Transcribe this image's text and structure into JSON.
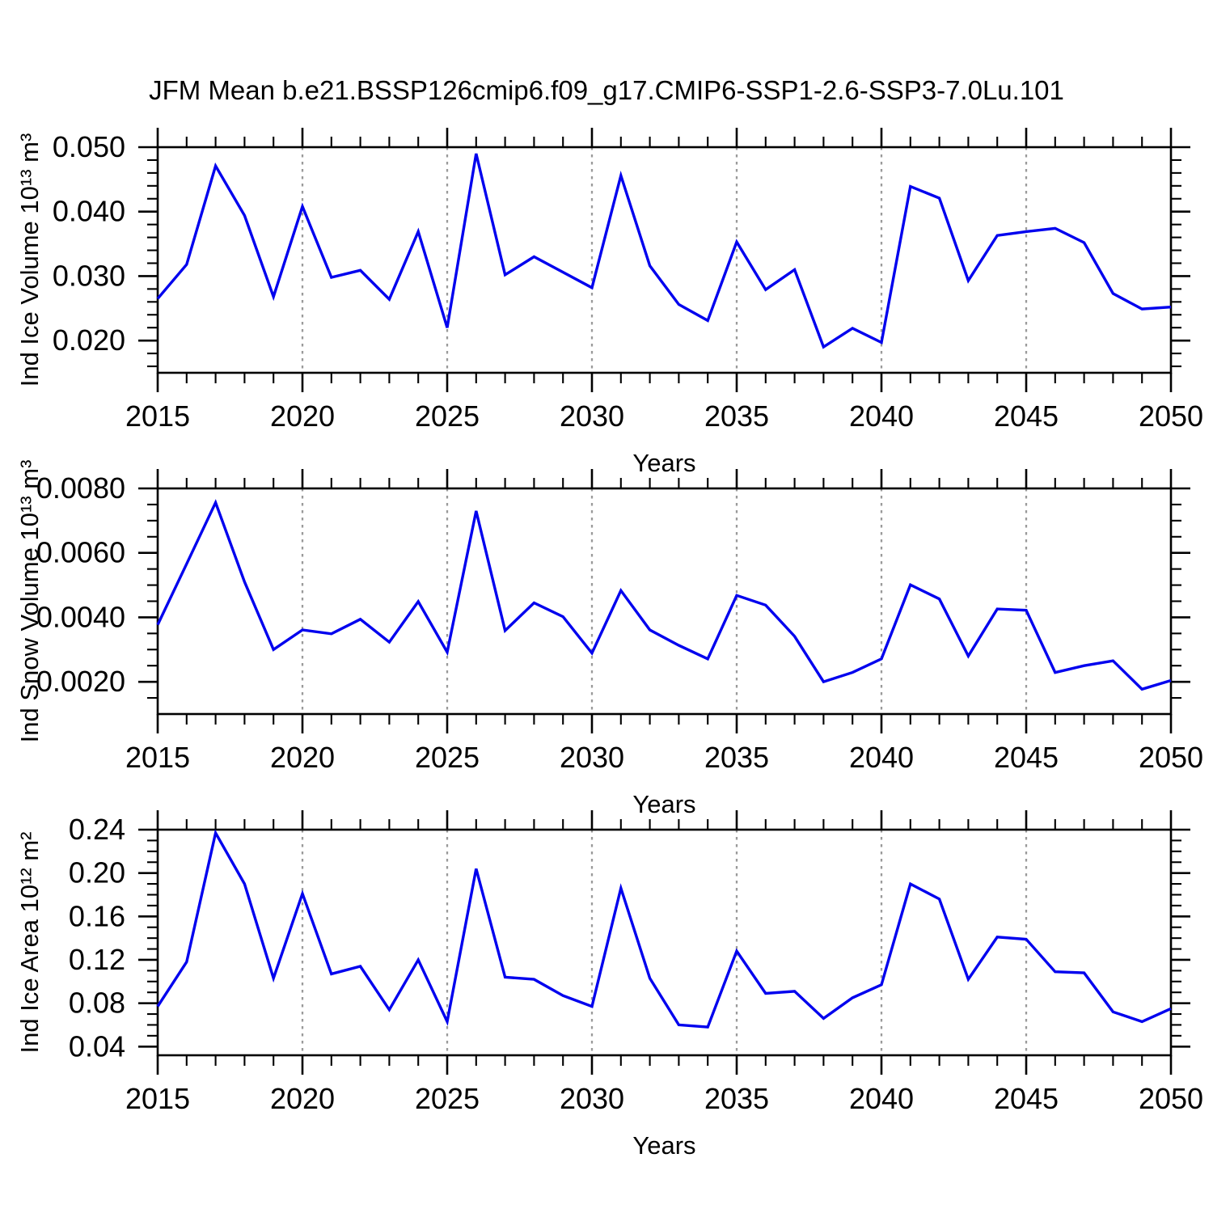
{
  "title": "JFM Mean b.e21.BSSP126cmip6.f09_g17.CMIP6-SSP1-2.6-SSP3-7.0Lu.101",
  "colors": {
    "line": "#0000ee",
    "axis": "#000000",
    "gridline": "#9a9a9a",
    "background": "#ffffff",
    "text": "#000000"
  },
  "chart_data": [
    {
      "type": "line",
      "ylabel": "Ind Ice Volume 10¹³ m³",
      "xlabel": "Years",
      "x": [
        2015,
        2016,
        2017,
        2018,
        2019,
        2020,
        2021,
        2022,
        2023,
        2024,
        2025,
        2026,
        2027,
        2028,
        2029,
        2030,
        2031,
        2032,
        2033,
        2034,
        2035,
        2036,
        2037,
        2038,
        2039,
        2040,
        2041,
        2042,
        2043,
        2044,
        2045,
        2046,
        2047,
        2048,
        2049,
        2050
      ],
      "values": [
        0.0265,
        0.0318,
        0.0471,
        0.0394,
        0.0268,
        0.0408,
        0.0298,
        0.0309,
        0.0264,
        0.0369,
        0.022,
        0.049,
        0.0302,
        0.033,
        0.0306,
        0.0282,
        0.0456,
        0.0316,
        0.0256,
        0.0231,
        0.0353,
        0.0279,
        0.031,
        0.019,
        0.0219,
        0.0197,
        0.0439,
        0.0421,
        0.0293,
        0.0363,
        0.0369,
        0.0374,
        0.0352,
        0.0273,
        0.0249,
        0.0252
      ],
      "xlim": [
        2015,
        2050
      ],
      "ylim": [
        0.015,
        0.05
      ],
      "x_major_ticks": [
        2015,
        2020,
        2025,
        2030,
        2035,
        2040,
        2045,
        2050
      ],
      "x_tick_labels": [
        "2015",
        "2020",
        "2025",
        "2030",
        "2035",
        "2040",
        "2045",
        "2050"
      ],
      "x_minor_step": 1,
      "y_major_ticks": [
        0.02,
        0.03,
        0.04,
        0.05
      ],
      "y_tick_labels": [
        "0.020",
        "0.030",
        "0.040",
        "0.050"
      ],
      "y_minor_step": 0.002,
      "x_gridlines": [
        2020,
        2025,
        2030,
        2035,
        2040,
        2045
      ],
      "grid": "vertical-dashed",
      "legend": "none"
    },
    {
      "type": "line",
      "ylabel": "Ind Snow Volume 10¹³ m³",
      "xlabel": "Years",
      "x": [
        2015,
        2016,
        2017,
        2018,
        2019,
        2020,
        2021,
        2022,
        2023,
        2024,
        2025,
        2026,
        2027,
        2028,
        2029,
        2030,
        2031,
        2032,
        2033,
        2034,
        2035,
        2036,
        2037,
        2038,
        2039,
        2040,
        2041,
        2042,
        2043,
        2044,
        2045,
        2046,
        2047,
        2048,
        2049,
        2050
      ],
      "values": [
        0.00377,
        0.00566,
        0.00756,
        0.0051,
        0.003,
        0.00361,
        0.00349,
        0.00394,
        0.00323,
        0.00449,
        0.00292,
        0.0073,
        0.00359,
        0.00445,
        0.00402,
        0.00289,
        0.00483,
        0.00361,
        0.00313,
        0.00271,
        0.00468,
        0.00438,
        0.00341,
        0.002,
        0.00229,
        0.00271,
        0.00501,
        0.00457,
        0.0028,
        0.00426,
        0.00422,
        0.00229,
        0.0025,
        0.00265,
        0.00177,
        0.00204
      ],
      "xlim": [
        2015,
        2050
      ],
      "ylim": [
        0.001,
        0.008
      ],
      "x_major_ticks": [
        2015,
        2020,
        2025,
        2030,
        2035,
        2040,
        2045,
        2050
      ],
      "x_tick_labels": [
        "2015",
        "2020",
        "2025",
        "2030",
        "2035",
        "2040",
        "2045",
        "2050"
      ],
      "x_minor_step": 1,
      "y_major_ticks": [
        0.002,
        0.004,
        0.006,
        0.008
      ],
      "y_tick_labels": [
        "0.0020",
        "0.0040",
        "0.0060",
        "0.0080"
      ],
      "y_minor_step": 0.0005,
      "x_gridlines": [
        2020,
        2025,
        2030,
        2035,
        2040,
        2045
      ],
      "grid": "vertical-dashed",
      "legend": "none"
    },
    {
      "type": "line",
      "ylabel": "Ind Ice Area 10¹² m²",
      "xlabel": "Years",
      "x": [
        2015,
        2016,
        2017,
        2018,
        2019,
        2020,
        2021,
        2022,
        2023,
        2024,
        2025,
        2026,
        2027,
        2028,
        2029,
        2030,
        2031,
        2032,
        2033,
        2034,
        2035,
        2036,
        2037,
        2038,
        2039,
        2040,
        2041,
        2042,
        2043,
        2044,
        2045,
        2046,
        2047,
        2048,
        2049,
        2050
      ],
      "values": [
        0.077,
        0.118,
        0.237,
        0.19,
        0.103,
        0.181,
        0.107,
        0.114,
        0.074,
        0.12,
        0.063,
        0.204,
        0.104,
        0.102,
        0.087,
        0.077,
        0.186,
        0.103,
        0.06,
        0.058,
        0.128,
        0.089,
        0.091,
        0.066,
        0.085,
        0.097,
        0.19,
        0.176,
        0.102,
        0.141,
        0.139,
        0.109,
        0.108,
        0.072,
        0.063,
        0.075
      ],
      "xlim": [
        2015,
        2050
      ],
      "ylim": [
        0.032,
        0.24
      ],
      "x_major_ticks": [
        2015,
        2020,
        2025,
        2030,
        2035,
        2040,
        2045,
        2050
      ],
      "x_tick_labels": [
        "2015",
        "2020",
        "2025",
        "2030",
        "2035",
        "2040",
        "2045",
        "2050"
      ],
      "x_minor_step": 1,
      "y_major_ticks": [
        0.04,
        0.08,
        0.12,
        0.16,
        0.2,
        0.24
      ],
      "y_tick_labels": [
        "0.04",
        "0.08",
        "0.12",
        "0.16",
        "0.20",
        "0.24"
      ],
      "y_minor_step": 0.01,
      "x_gridlines": [
        2020,
        2025,
        2030,
        2035,
        2040,
        2045
      ],
      "grid": "vertical-dashed",
      "legend": "none"
    }
  ]
}
